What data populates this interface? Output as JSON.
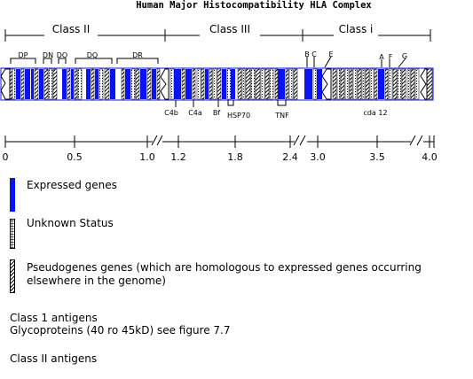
{
  "title": "Human Major Histocompatibility HLA Complex",
  "regions": {
    "class2": "Class II",
    "class3": "Class III",
    "class1": "Class i"
  },
  "locus_labels": {
    "dp": "DP",
    "dn": "DN",
    "do": "DO",
    "dq": "DQ",
    "dr": "DR",
    "b": "B",
    "c": "C",
    "e": "E",
    "a": "A",
    "f": "F",
    "g": "G",
    "c4b": "C4b",
    "c4a": "C4a",
    "bf": "Bf",
    "hsp70": "HSP70",
    "tnf": "TNF",
    "cda12": "cda 12"
  },
  "scale_ticks": [
    "0",
    "0.5",
    "1.0",
    "1.2",
    "1.8",
    "2.4",
    "3.0",
    "3.5",
    "4.0"
  ],
  "legend": [
    {
      "key": "expressed",
      "style": "solid-blue",
      "label": "Expressed genes"
    },
    {
      "key": "unknown",
      "style": "dotted",
      "label": "Unknown Status"
    },
    {
      "key": "pseudo",
      "style": "hatched",
      "label": "Pseudogenes genes (which are homologous to expressed genes occurring elsewhere in the genome)"
    }
  ],
  "notes": {
    "class1_title": "Class 1 antigens",
    "class1_detail": "Glycoproteins (40 ro 45kD) see figure 7.7",
    "class2_title": "Class II antigens"
  },
  "colors": {
    "expressed": "#0a14f0",
    "outline": "#0a14f0",
    "text": "#000000"
  }
}
